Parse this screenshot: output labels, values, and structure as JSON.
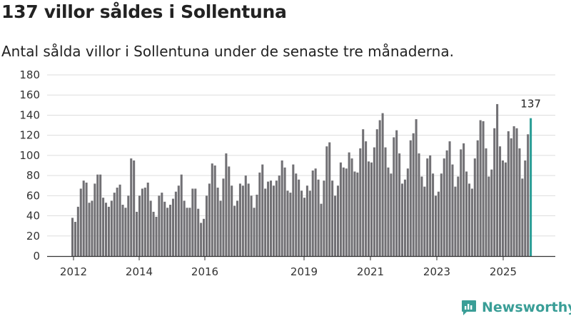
{
  "title": "137 villor såldes i Sollentuna",
  "subtitle": "Antal sålda villor i Sollentuna under de senaste tre månaderna.",
  "brand": {
    "name": "Newsworthy",
    "icon": "newsworthy-logo-icon",
    "color": "#3a9e97"
  },
  "colors": {
    "bar": "#717074",
    "highlight": "#2a9d96",
    "grid": "#dddddd",
    "axis": "#333333"
  },
  "chart_data": {
    "type": "bar",
    "title": "137 villor såldes i Sollentuna",
    "xlabel": "",
    "ylabel": "",
    "ylim": [
      0,
      180
    ],
    "yticks": [
      0,
      20,
      40,
      60,
      80,
      100,
      120,
      140,
      160,
      180
    ],
    "x_ticks": [
      "2012",
      "2014",
      "2016",
      "2019",
      "2021",
      "2023",
      "2025"
    ],
    "series": [
      {
        "name": "Antal sålda villor (rullande tre månader)",
        "values": [
          38,
          34,
          49,
          67,
          75,
          73,
          53,
          55,
          72,
          81,
          81,
          58,
          53,
          49,
          55,
          63,
          68,
          71,
          51,
          48,
          60,
          97,
          95,
          44,
          60,
          67,
          68,
          73,
          55,
          44,
          39,
          60,
          63,
          54,
          48,
          51,
          57,
          64,
          70,
          81,
          55,
          48,
          48,
          67,
          67,
          47,
          33,
          37,
          60,
          72,
          92,
          90,
          68,
          55,
          77,
          102,
          89,
          70,
          50,
          55,
          72,
          70,
          80,
          72,
          60,
          48,
          61,
          83,
          91,
          67,
          74,
          75,
          70,
          75,
          80,
          95,
          88,
          65,
          63,
          91,
          82,
          76,
          65,
          58,
          70,
          65,
          85,
          87,
          76,
          52,
          75,
          109,
          113,
          75,
          60,
          70,
          93,
          88,
          87,
          103,
          97,
          84,
          83,
          107,
          126,
          114,
          94,
          93,
          108,
          126,
          135,
          142,
          108,
          88,
          82,
          118,
          125,
          102,
          72,
          76,
          87,
          115,
          122,
          136,
          102,
          79,
          69,
          97,
          100,
          82,
          60,
          64,
          82,
          97,
          105,
          114,
          91,
          69,
          79,
          106,
          112,
          84,
          72,
          67,
          97,
          115,
          135,
          134,
          107,
          79,
          86,
          127,
          151,
          109,
          95,
          93,
          124,
          117,
          129,
          127,
          107,
          77,
          95,
          121,
          137
        ]
      }
    ],
    "highlight": {
      "label": "137",
      "value": 137
    }
  }
}
